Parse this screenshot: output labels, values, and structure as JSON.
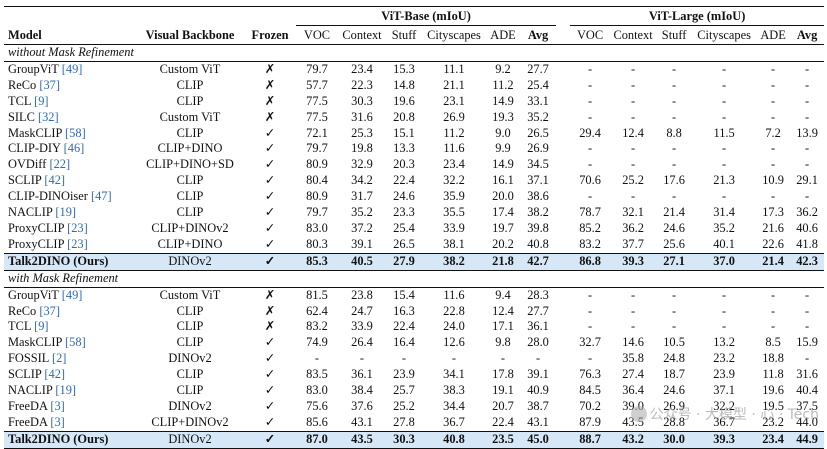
{
  "header": {
    "model": "Model",
    "backbone": "Visual Backbone",
    "frozen": "Frozen",
    "group_base": "ViT-Base (mIoU)",
    "group_large": "ViT-Large (mIoU)",
    "metrics": [
      "VOC",
      "Context",
      "Stuff",
      "Cityscapes",
      "ADE",
      "Avg"
    ]
  },
  "sections": [
    {
      "title": "without Mask Refinement",
      "rows": [
        {
          "name": "GroupViT",
          "cite": "[49]",
          "backbone": "Custom ViT",
          "frozen": "✗",
          "base": [
            "79.7",
            "23.4",
            "15.3",
            "11.1",
            "9.2",
            "27.7"
          ],
          "large": [
            "-",
            "-",
            "-",
            "-",
            "-",
            "-"
          ]
        },
        {
          "name": "ReCo",
          "cite": "[37]",
          "backbone": "CLIP",
          "frozen": "✗",
          "base": [
            "57.7",
            "22.3",
            "14.8",
            "21.1",
            "11.2",
            "25.4"
          ],
          "large": [
            "-",
            "-",
            "-",
            "-",
            "-",
            "-"
          ]
        },
        {
          "name": "TCL",
          "cite": "[9]",
          "backbone": "CLIP",
          "frozen": "✗",
          "base": [
            "77.5",
            "30.3",
            "19.6",
            "23.1",
            "14.9",
            "33.1"
          ],
          "large": [
            "-",
            "-",
            "-",
            "-",
            "-",
            "-"
          ]
        },
        {
          "name": "SILC",
          "cite": "[32]",
          "backbone": "Custom ViT",
          "frozen": "✗",
          "base": [
            "77.5",
            "31.6",
            "20.8",
            "26.9",
            "19.3",
            "35.2"
          ],
          "large": [
            "-",
            "-",
            "-",
            "-",
            "-",
            "-"
          ]
        },
        {
          "name": "MaskCLIP",
          "cite": "[58]",
          "backbone": "CLIP",
          "frozen": "✓",
          "base": [
            "72.1",
            "25.3",
            "15.1",
            "11.2",
            "9.0",
            "26.5"
          ],
          "large": [
            "29.4",
            "12.4",
            "8.8",
            "11.5",
            "7.2",
            "13.9"
          ]
        },
        {
          "name": "CLIP-DIY",
          "cite": "[46]",
          "backbone": "CLIP+DINO",
          "frozen": "✓",
          "base": [
            "79.7",
            "19.8",
            "13.3",
            "11.6",
            "9.9",
            "26.9"
          ],
          "large": [
            "-",
            "-",
            "-",
            "-",
            "-",
            "-"
          ]
        },
        {
          "name": "OVDiff",
          "cite": "[22]",
          "backbone": "CLIP+DINO+SD",
          "frozen": "✓",
          "base": [
            "80.9",
            "32.9",
            "20.3",
            "23.4",
            "14.9",
            "34.5"
          ],
          "large": [
            "-",
            "-",
            "-",
            "-",
            "-",
            "-"
          ]
        },
        {
          "name": "SCLIP",
          "cite": "[42]",
          "backbone": "CLIP",
          "frozen": "✓",
          "base": [
            "80.4",
            "34.2",
            "22.4",
            "32.2",
            "16.1",
            "37.1"
          ],
          "large": [
            "70.6",
            "25.2",
            "17.6",
            "21.3",
            "10.9",
            "29.1"
          ]
        },
        {
          "name": "CLIP-DINOiser",
          "cite": "[47]",
          "backbone": "CLIP",
          "frozen": "✓",
          "base": [
            "80.9",
            "31.7",
            "24.6",
            "35.9",
            "20.0",
            "38.6"
          ],
          "large": [
            "-",
            "-",
            "-",
            "-",
            "-",
            "-"
          ]
        },
        {
          "name": "NACLIP",
          "cite": "[19]",
          "backbone": "CLIP",
          "frozen": "✓",
          "base": [
            "79.7",
            "35.2",
            "23.3",
            "35.5",
            "17.4",
            "38.2"
          ],
          "large": [
            "78.7",
            "32.1",
            "21.4",
            "31.4",
            "17.3",
            "36.2"
          ]
        },
        {
          "name": "ProxyCLIP",
          "cite": "[23]",
          "backbone": "CLIP+DINOv2",
          "frozen": "✓",
          "base": [
            "83.0",
            "37.2",
            "25.4",
            "33.9",
            "19.7",
            "39.8"
          ],
          "large": [
            "85.2",
            "36.2",
            "24.6",
            "35.2",
            "21.6",
            "40.6"
          ]
        },
        {
          "name": "ProxyCLIP",
          "cite": "[23]",
          "backbone": "CLIP+DINO",
          "frozen": "✓",
          "base": [
            "80.3",
            "39.1",
            "26.5",
            "38.1",
            "20.2",
            "40.8"
          ],
          "large": [
            "83.2",
            "37.7",
            "25.6",
            "40.1",
            "22.6",
            "41.8"
          ]
        },
        {
          "name": "Talk2DINO (Ours)",
          "cite": "",
          "backbone": "DINOv2",
          "frozen": "✓",
          "ours": true,
          "base": [
            "85.3",
            "40.5",
            "27.9",
            "38.2",
            "21.8",
            "42.7"
          ],
          "large": [
            "86.8",
            "39.3",
            "27.1",
            "37.0",
            "21.4",
            "42.3"
          ]
        }
      ]
    },
    {
      "title": "with Mask Refinement",
      "rows": [
        {
          "name": "GroupViT",
          "cite": "[49]",
          "backbone": "Custom ViT",
          "frozen": "✗",
          "base": [
            "81.5",
            "23.8",
            "15.4",
            "11.6",
            "9.4",
            "28.3"
          ],
          "large": [
            "-",
            "-",
            "-",
            "-",
            "-",
            "-"
          ]
        },
        {
          "name": "ReCo",
          "cite": "[37]",
          "backbone": "CLIP",
          "frozen": "✗",
          "base": [
            "62.4",
            "24.7",
            "16.3",
            "22.8",
            "12.4",
            "27.7"
          ],
          "large": [
            "-",
            "-",
            "-",
            "-",
            "-",
            "-"
          ]
        },
        {
          "name": "TCL",
          "cite": "[9]",
          "backbone": "CLIP",
          "frozen": "✗",
          "base": [
            "83.2",
            "33.9",
            "22.4",
            "24.0",
            "17.1",
            "36.1"
          ],
          "large": [
            "-",
            "-",
            "-",
            "-",
            "-",
            "-"
          ]
        },
        {
          "name": "MaskCLIP",
          "cite": "[58]",
          "backbone": "CLIP",
          "frozen": "✓",
          "base": [
            "74.9",
            "26.4",
            "16.4",
            "12.6",
            "9.8",
            "28.0"
          ],
          "large": [
            "32.7",
            "14.6",
            "10.5",
            "13.2",
            "8.5",
            "15.9"
          ]
        },
        {
          "name": "FOSSIL",
          "cite": "[2]",
          "backbone": "DINOv2",
          "frozen": "✓",
          "base": [
            "-",
            "-",
            "-",
            "-",
            "-",
            "-"
          ],
          "large": [
            "-",
            "35.8",
            "24.8",
            "23.2",
            "18.8",
            "-"
          ]
        },
        {
          "name": "SCLIP",
          "cite": "[42]",
          "backbone": "CLIP",
          "frozen": "✓",
          "base": [
            "83.5",
            "36.1",
            "23.9",
            "34.1",
            "17.8",
            "39.1"
          ],
          "large": [
            "76.3",
            "27.4",
            "18.7",
            "23.9",
            "11.8",
            "31.6"
          ]
        },
        {
          "name": "NACLIP",
          "cite": "[19]",
          "backbone": "CLIP",
          "frozen": "✓",
          "base": [
            "83.0",
            "38.4",
            "25.7",
            "38.3",
            "19.1",
            "40.9"
          ],
          "large": [
            "84.5",
            "36.4",
            "24.6",
            "37.1",
            "19.6",
            "40.4"
          ]
        },
        {
          "name": "FreeDA",
          "cite": "[3]",
          "backbone": "DINOv2",
          "frozen": "✓",
          "base": [
            "75.6",
            "37.6",
            "25.2",
            "34.4",
            "20.7",
            "38.7"
          ],
          "large": [
            "70.2",
            "39.0",
            "26.9",
            "32.2",
            "19.5",
            "37.5"
          ]
        },
        {
          "name": "FreeDA",
          "cite": "[3]",
          "backbone": "CLIP+DINOv2",
          "frozen": "✓",
          "base": [
            "85.6",
            "43.1",
            "27.8",
            "36.7",
            "22.4",
            "43.1"
          ],
          "large": [
            "87.9",
            "43.5",
            "28.8",
            "36.7",
            "23.2",
            "44.0"
          ]
        },
        {
          "name": "Talk2DINO (Ours)",
          "cite": "",
          "backbone": "DINOv2",
          "frozen": "✓",
          "ours": true,
          "base": [
            "87.0",
            "43.5",
            "30.3",
            "40.8",
            "23.5",
            "45.0"
          ],
          "large": [
            "88.7",
            "43.2",
            "30.0",
            "39.3",
            "23.4",
            "44.9"
          ]
        }
      ]
    }
  ],
  "watermark": "公众号 · 大模型 · 心 · Tech"
}
